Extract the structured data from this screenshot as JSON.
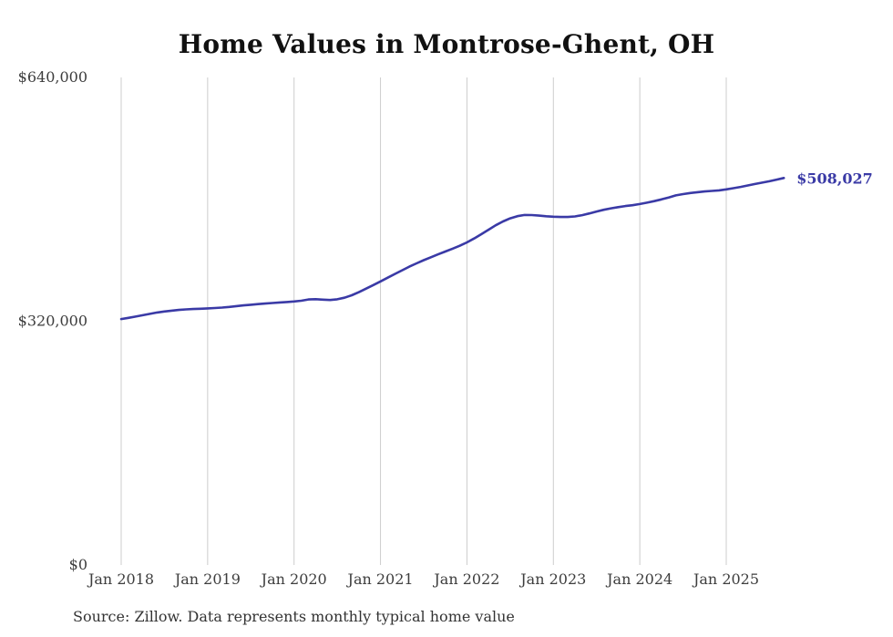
{
  "chart_data": {
    "type": "line",
    "title": "Home Values in Montrose-Ghent, OH",
    "source": "Source: Zillow. Data represents monthly typical home value",
    "xlabel": "",
    "ylabel": "",
    "ylim": [
      0,
      640000
    ],
    "grid": "vertical-only",
    "legend": "none",
    "line_color": "#3a3aa6",
    "grid_color": "#cccccc",
    "tick_text_color": "#3d3d3d",
    "end_label": "$508,027",
    "end_value": 508027,
    "y_ticks": [
      {
        "value": 640000,
        "label": "$640,000"
      },
      {
        "value": 320000,
        "label": "$320,000"
      },
      {
        "value": 0,
        "label": "$0"
      }
    ],
    "x_ticks": [
      "Jan 2018",
      "Jan 2019",
      "Jan 2020",
      "Jan 2021",
      "Jan 2022",
      "Jan 2023",
      "Jan 2024",
      "Jan 2025"
    ],
    "series": [
      {
        "name": "Monthly typical home value",
        "start_month": "2018-01",
        "end_month": "2025-09",
        "interval": "monthly",
        "values": [
          322900,
          324400,
          326100,
          327900,
          329700,
          331500,
          332800,
          333900,
          334800,
          335500,
          336000,
          336400,
          336900,
          337400,
          338000,
          338800,
          339800,
          340800,
          341700,
          342500,
          343200,
          343900,
          344600,
          345200,
          345900,
          346900,
          348600,
          348900,
          348300,
          347900,
          348800,
          350900,
          354100,
          358200,
          362800,
          367500,
          372300,
          377200,
          382100,
          386900,
          391600,
          396000,
          400100,
          404000,
          407800,
          411500,
          415200,
          419000,
          423500,
          428600,
          434200,
          440100,
          446000,
          451000,
          455000,
          457900,
          459500,
          459400,
          458600,
          457800,
          457200,
          456900,
          456800,
          457600,
          459200,
          461500,
          464000,
          466300,
          468200,
          469800,
          471200,
          472300,
          473800,
          475600,
          477700,
          480000,
          482500,
          485200,
          486900,
          488300,
          489400,
          490300,
          491100,
          491800,
          493100,
          494600,
          496300,
          498200,
          500100,
          501900,
          503800,
          505900,
          508027
        ]
      }
    ]
  }
}
